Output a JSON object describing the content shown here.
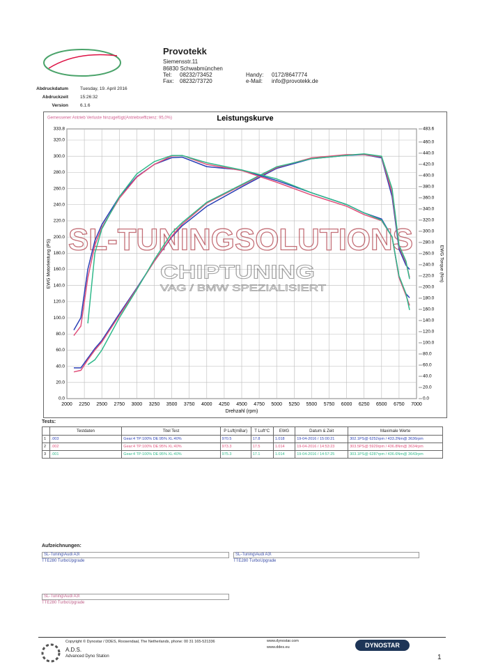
{
  "header": {
    "company": "Provotekk",
    "street": "Siemensstr.11",
    "city": "86830 Schwabmünchen",
    "tel_label": "Tel:",
    "tel": "08232/73452",
    "fax_label": "Fax:",
    "fax": "08232/73720",
    "handy_label": "Handy:",
    "handy": "0172/8647774",
    "email_label": "e-Mail:",
    "email": "info@provotekk.de"
  },
  "meta": {
    "rows": [
      [
        "Abdruckdatum",
        "Tuesday, 19. April 2016"
      ],
      [
        "Abdruckzeit",
        "15:26:32"
      ],
      [
        "Version",
        "6.1.6"
      ]
    ]
  },
  "chart_data": {
    "type": "line",
    "title": "Leistungskurve",
    "note": "Gemessener Antrieb Verluste hinzugefügt(Antriebseffizienz: 95,0%)",
    "watermark": [
      "SL-TUNINGSOLUTIONS",
      "CHIPTUNING",
      "VAG / BMW SPEZIALISIERT"
    ],
    "x_label": "Drehzahl (rpm)",
    "y_label": "EWG Motorleistung (PS)",
    "y2_label": "EWG Torque (Nm)",
    "grid": true,
    "xlim": [
      2000,
      7000
    ],
    "xticks": [
      2000,
      2250,
      2500,
      2750,
      3000,
      3250,
      3500,
      3750,
      4000,
      4250,
      4500,
      4750,
      5000,
      5250,
      5500,
      5750,
      6000,
      6250,
      6500,
      6750,
      7000
    ],
    "ylim": [
      0,
      333.8
    ],
    "yticks": [
      {
        "value": 0,
        "label": "0.0"
      },
      {
        "value": 20,
        "label": "20.0"
      },
      {
        "value": 40,
        "label": "40.0"
      },
      {
        "value": 60,
        "label": "60.0"
      },
      {
        "value": 80,
        "label": "80.0"
      },
      {
        "value": 100,
        "label": "100.0"
      },
      {
        "value": 120,
        "label": "120.0"
      },
      {
        "value": 140,
        "label": "140.0"
      },
      {
        "value": 160,
        "label": "160.0"
      },
      {
        "value": 180,
        "label": "180.0"
      },
      {
        "value": 200,
        "label": "200.0"
      },
      {
        "value": 220,
        "label": "220.0"
      },
      {
        "value": 240,
        "label": "240.0"
      },
      {
        "value": 260,
        "label": "260.0"
      },
      {
        "value": 280,
        "label": "280.0"
      },
      {
        "value": 300,
        "label": "300.0"
      },
      {
        "value": 320,
        "label": "320.0"
      },
      333.8
    ],
    "y2lim": [
      0,
      483.6
    ],
    "y2ticks": [
      {
        "value": 0,
        "label": "0.0"
      },
      {
        "value": 20,
        "label": "20.0"
      },
      {
        "value": 40,
        "label": "40.0"
      },
      {
        "value": 60,
        "label": "60.0"
      },
      {
        "value": 80,
        "label": "80.0"
      },
      {
        "value": 100,
        "label": "100.0"
      },
      {
        "value": 120,
        "label": "120.0"
      },
      {
        "value": 140,
        "label": "140.0"
      },
      {
        "value": 160,
        "label": "160.0"
      },
      {
        "value": 180,
        "label": "180.0"
      },
      {
        "value": 200,
        "label": "200.0"
      },
      {
        "value": 220,
        "label": "220.0"
      },
      {
        "value": 240,
        "label": "240.0"
      },
      {
        "value": 260,
        "label": "260.0"
      },
      {
        "value": 280,
        "label": "280.0"
      },
      {
        "value": 300,
        "label": "300.0"
      },
      {
        "value": 320,
        "label": "320.0"
      },
      {
        "value": 340,
        "label": "340.0"
      },
      {
        "value": 360,
        "label": "360.0"
      },
      {
        "value": 380,
        "label": "380.0"
      },
      {
        "value": 400,
        "label": "400.0"
      },
      {
        "value": 420,
        "label": "420.0"
      },
      {
        "value": 440,
        "label": "440.0"
      },
      {
        "value": 460,
        "label": "460.0"
      },
      483.6
    ],
    "x": [
      2100,
      2200,
      2300,
      2400,
      2500,
      2750,
      3000,
      3250,
      3500,
      3650,
      4000,
      4500,
      5000,
      5500,
      6000,
      6250,
      6500,
      6650,
      6750,
      6850,
      6900
    ],
    "series": [
      {
        "color": "#2a3fb5",
        "values": [
          38,
          38,
          50,
          62,
          72,
          105,
          137,
          170,
          200,
          214,
          238,
          262,
          285,
          297,
          301,
          302,
          298,
          250,
          185,
          165,
          160
        ]
      },
      {
        "color": "#e0507a",
        "values": [
          33,
          35,
          48,
          60,
          70,
          103,
          136,
          170,
          201,
          216,
          242,
          264,
          286,
          298,
          302,
          302,
          299,
          255,
          188,
          168,
          150
        ]
      },
      {
        "color": "#2fb98a",
        "values": [
          null,
          null,
          42,
          48,
          60,
          100,
          135,
          172,
          205,
          218,
          243,
          265,
          287,
          297,
          301,
          303,
          300,
          260,
          190,
          170,
          148
        ]
      },
      {
        "color": "#2a3fb5",
        "axis": "y2",
        "values": [
          123,
          145,
          232,
          283,
          312,
          362,
          398,
          420,
          432,
          433,
          416,
          410,
          391,
          369,
          348,
          333,
          322,
          290,
          217,
          188,
          181
        ]
      },
      {
        "color": "#e0507a",
        "axis": "y2",
        "values": [
          113,
          130,
          217,
          275,
          307,
          359,
          397,
          420,
          435,
          436,
          420,
          409,
          388,
          365,
          345,
          330,
          319,
          290,
          217,
          185,
          167
        ]
      },
      {
        "color": "#2fb98a",
        "axis": "y2",
        "values": [
          null,
          null,
          135,
          261,
          304,
          362,
          403,
          425,
          436,
          436,
          423,
          410,
          394,
          369,
          348,
          333,
          320,
          290,
          220,
          188,
          159
        ]
      }
    ]
  },
  "tests": {
    "title": "Tests:",
    "columns": [
      "Testdaten",
      "Titel Test",
      "P Luft(mBar)",
      "T Luft°C",
      "EWG",
      "Datum & Zeit",
      "Maximale Werte"
    ],
    "rows": [
      [
        "1",
        ".003",
        "Gear:4 TP:100% DE:95% XL:40%",
        "970.5",
        "17.8",
        "1.018",
        "19-04-2016 / 15:00:21",
        "302.1PS@ 6252rpm / 433.2Nm@ 3636rpm"
      ],
      [
        "2",
        ".002",
        "Gear:4 TP:100% DE:95% XL:40%",
        "973.3",
        "17.5",
        "1.014",
        "19-04-2016 / 14:53:23",
        "303.5PS@ 5929rpm / 436.8Nm@ 3634rpm"
      ],
      [
        "3",
        ".001",
        "Gear:4 TP:100% DE:95% XL:40%",
        "975.3",
        "17.1",
        "1.014",
        "19-04-2016 / 14:57:25",
        "303.1PS@ 6287rpm / 436.6Nm@ 3643rpm"
      ]
    ]
  },
  "notes": {
    "title": "Aufzeichnungen:",
    "boxes": [
      [
        "SL-Tuning\\Audi A3\\",
        "TTE280 TurboUpgrade"
      ],
      [
        "SL-Tuning\\Audi A3\\",
        "TTE280 TurboUpgrade"
      ],
      [
        "SL-Tuning\\Audi A3\\",
        "TTE280 TurboUpgrade"
      ]
    ]
  },
  "footer": {
    "copyright": "Copyright © Dynostar / DDES, Roosendaal, The Netherlands, phone: 00 31 165-521336",
    "ads": "A.D.S.",
    "ads_full": "Advanced Dyno Station",
    "web1": "www.dynostar.com",
    "web2": "www.ddes.eu",
    "brand": "DYNOSTAR",
    "page": "1"
  }
}
